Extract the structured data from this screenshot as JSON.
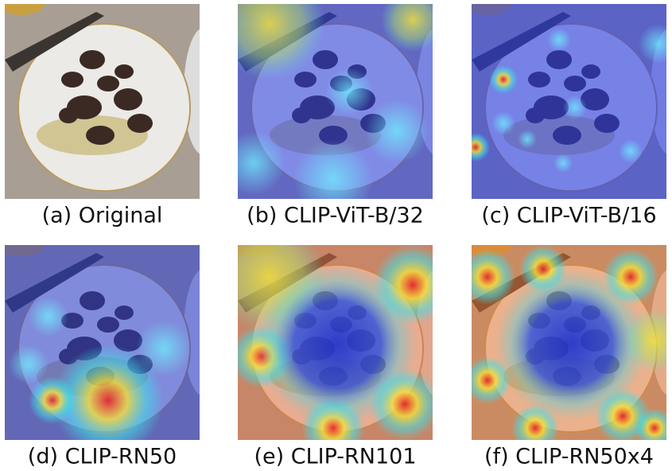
{
  "panels": [
    {
      "caption": "(a) Original"
    },
    {
      "caption": "(b) CLIP-ViT-B/32"
    },
    {
      "caption": "(c) CLIP-ViT-B/16"
    },
    {
      "caption": "(d) CLIP-RN50"
    },
    {
      "caption": "(e) CLIP-RN101"
    },
    {
      "caption": "(f) CLIP-RN50x4"
    }
  ]
}
